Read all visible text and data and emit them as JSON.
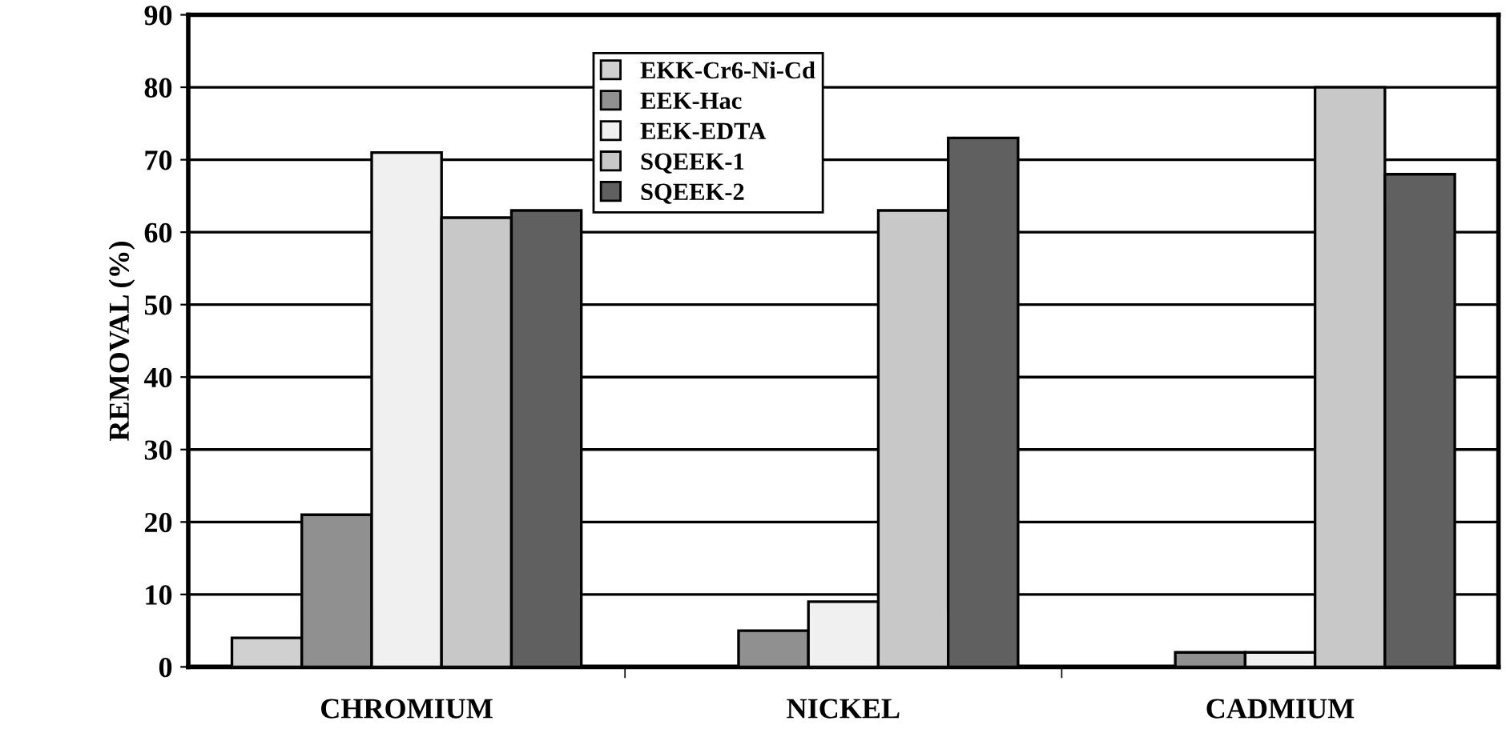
{
  "chart_data": {
    "type": "bar",
    "categories": [
      "CHROMIUM",
      "NICKEL",
      "CADMIUM"
    ],
    "series": [
      {
        "name": "EKK-Cr6-Ni-Cd",
        "color": "#d0d0d0",
        "values": [
          4,
          null,
          null
        ]
      },
      {
        "name": "EEK-Hac",
        "color": "#909090",
        "values": [
          21,
          5,
          2
        ]
      },
      {
        "name": "EEK-EDTA",
        "color": "#f0f0f0",
        "values": [
          71,
          9,
          2
        ]
      },
      {
        "name": "SQEEK-1",
        "color": "#c8c8c8",
        "values": [
          62,
          63,
          80
        ]
      },
      {
        "name": "SQEEK-2",
        "color": "#606060",
        "values": [
          63,
          73,
          68
        ]
      }
    ],
    "ylabel": "REMOVAL (%)",
    "ylim": [
      0,
      90
    ],
    "yticks": [
      0,
      10,
      20,
      30,
      40,
      50,
      60,
      70,
      80,
      90
    ],
    "grid": "y",
    "legend": "top center"
  }
}
